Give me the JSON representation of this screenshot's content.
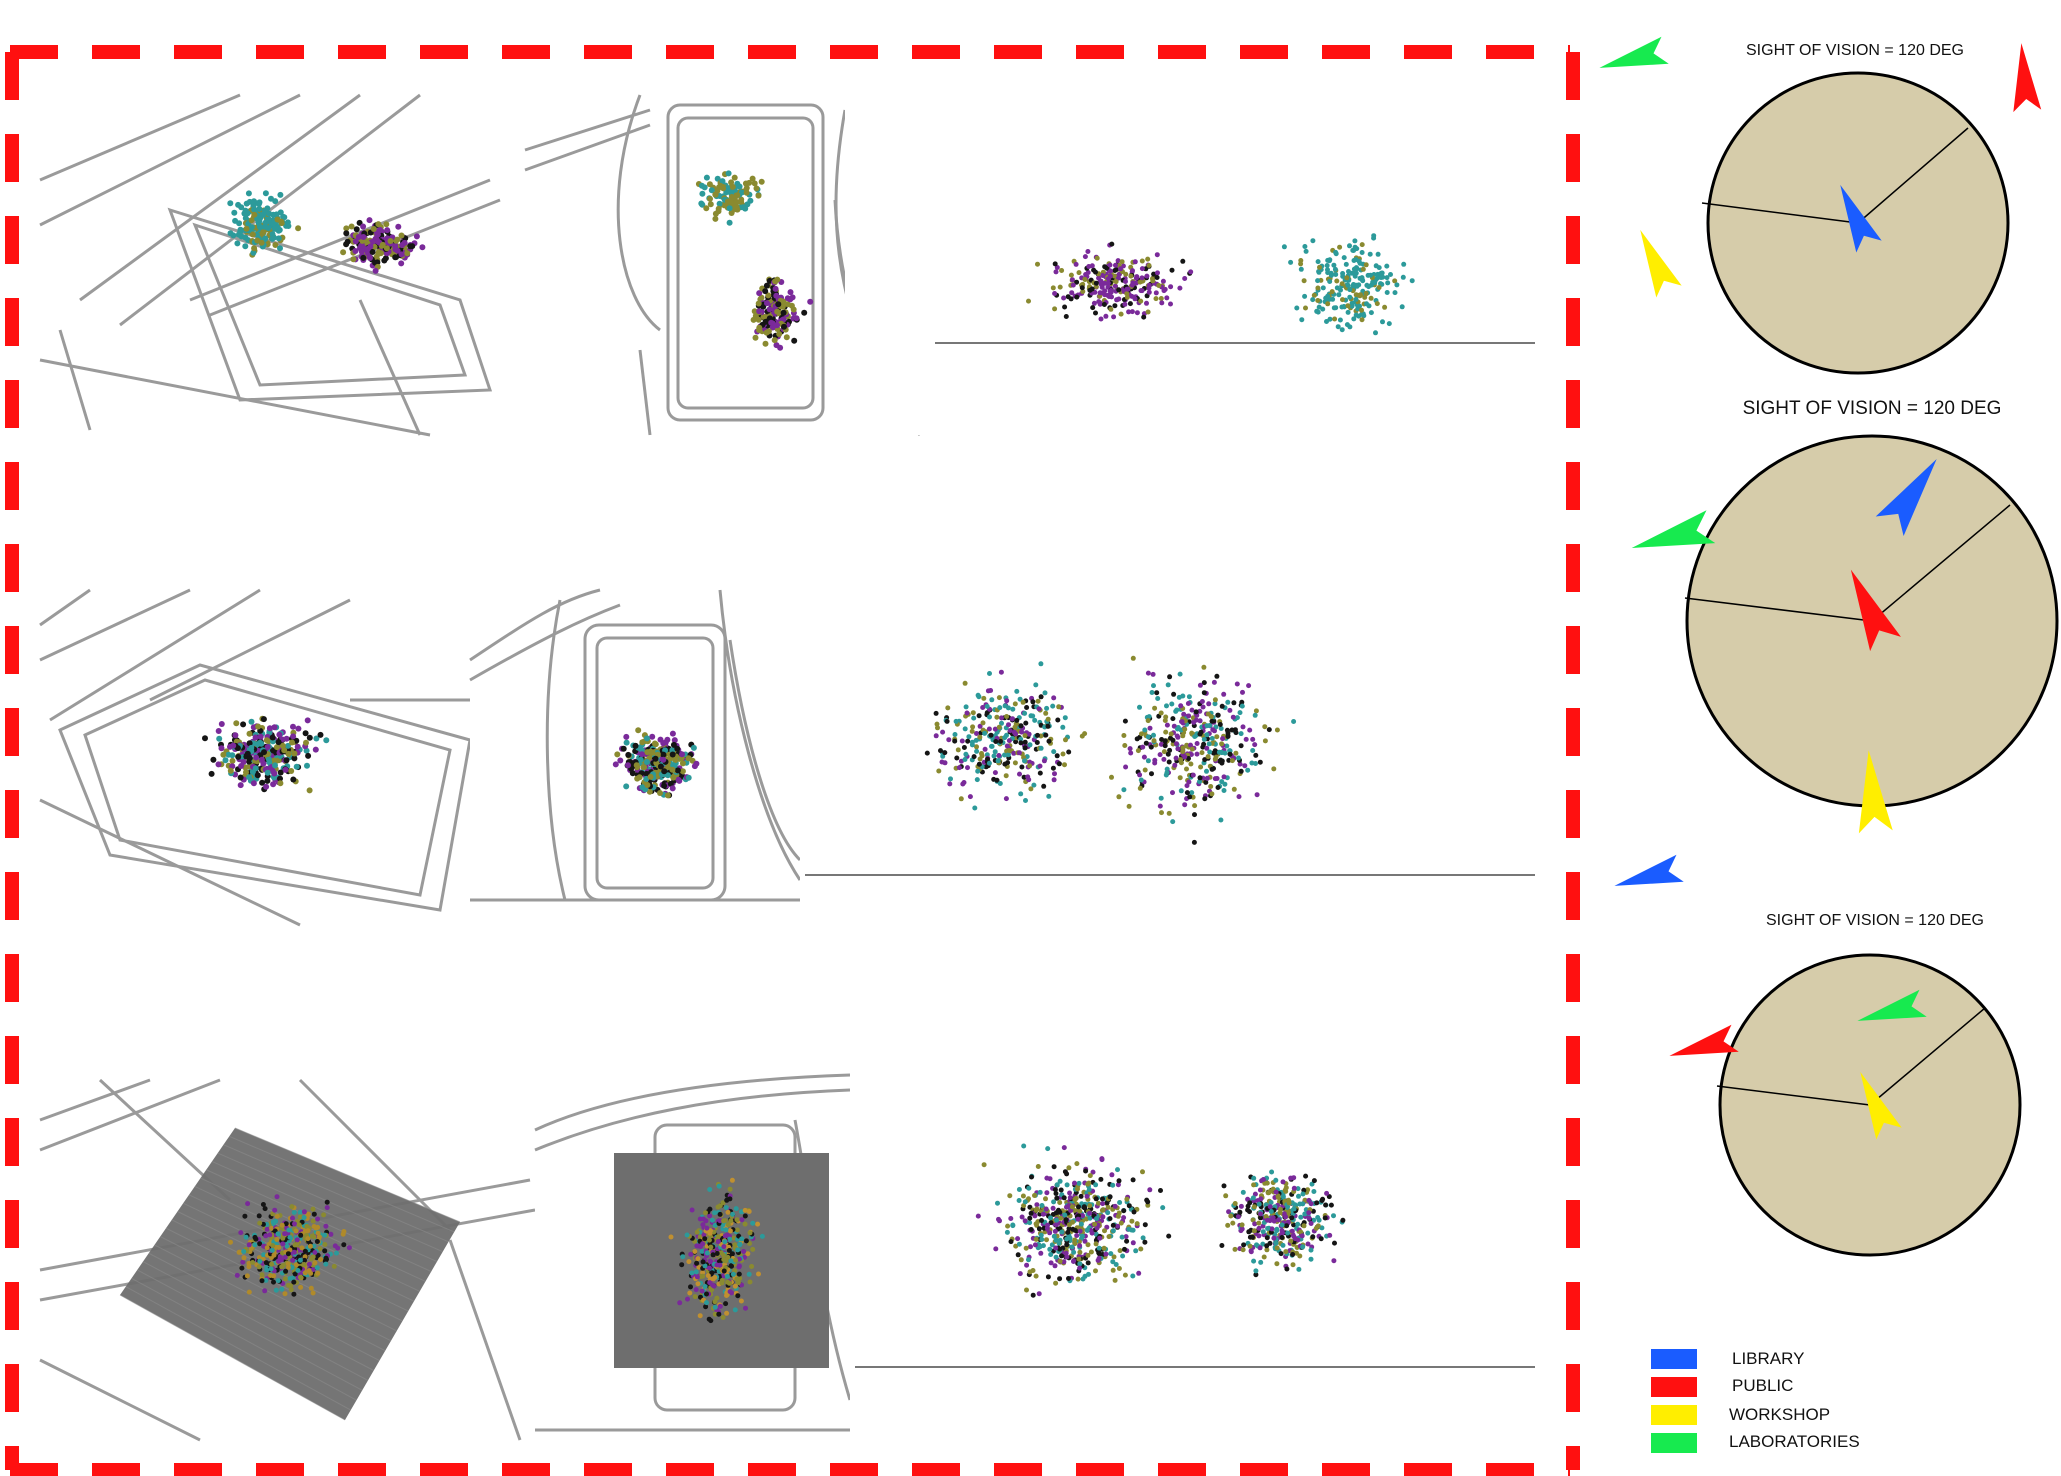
{
  "vision_diagrams": [
    {
      "caption": "SIGHT OF VISION = 120 DEG",
      "center_arrow": "library",
      "outer_arrows": [
        "laboratories",
        "public",
        "workshop"
      ]
    },
    {
      "caption": "SIGHT OF VISION = 120 DEG",
      "center_arrow": "public",
      "outer_arrows": [
        "laboratories",
        "library",
        "workshop"
      ]
    },
    {
      "caption": "SIGHT OF VISION = 120 DEG",
      "center_arrow": "workshop",
      "outer_arrows": [
        "public",
        "laboratories"
      ]
    }
  ],
  "side_arrow": "library",
  "legend": [
    {
      "key": "library",
      "label": "LIBRARY",
      "color": "#1a5cff"
    },
    {
      "key": "public",
      "label": "PUBLIC",
      "color": "#ff1010"
    },
    {
      "key": "workshop",
      "label": "WORKSHOP",
      "color": "#ffee00"
    },
    {
      "key": "laboratories",
      "label": "LABORATORIES",
      "color": "#17ea4f"
    }
  ],
  "colors": {
    "frame_dash": "#ff1010",
    "circle_fill": "#d6ccaa",
    "agent_purple": "#7a2a9a",
    "agent_teal": "#2c9a9a",
    "agent_olive": "#8a8a30",
    "agent_black": "#151515",
    "road_line": "#9a9a9a",
    "grid_fill": "#6e6e6e"
  },
  "rows": [
    {
      "name": "row-1",
      "pattern": "two separated clusters"
    },
    {
      "name": "row-2",
      "pattern": "single mixed cluster"
    },
    {
      "name": "row-3",
      "pattern": "dense mixed cluster over grid"
    }
  ]
}
